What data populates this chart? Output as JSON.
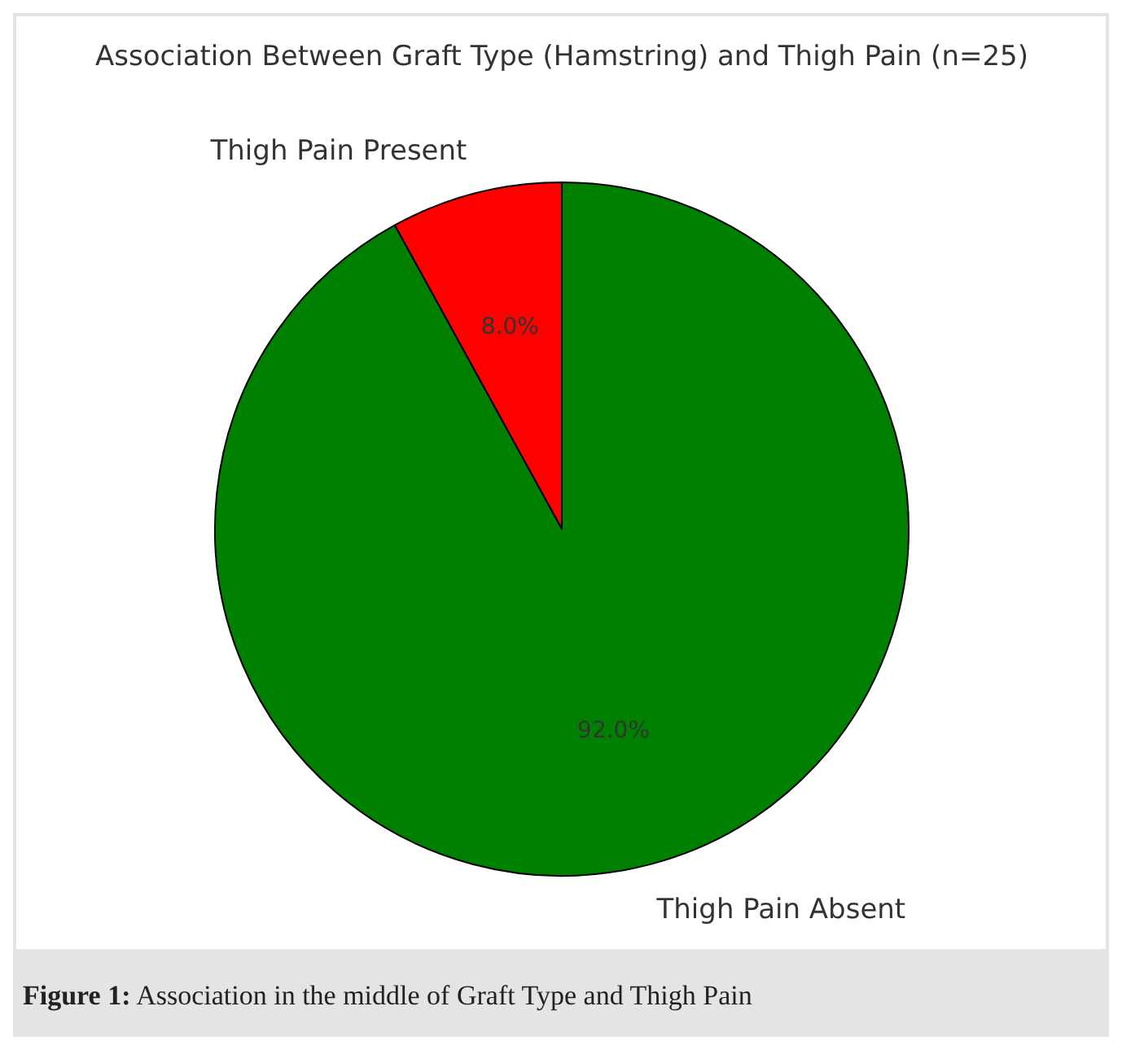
{
  "chart_data": {
    "type": "pie",
    "title": "Association Between Graft Type (Hamstring) and Thigh Pain (n=25)",
    "categories": [
      "Thigh Pain Present",
      "Thigh Pain Absent"
    ],
    "values": [
      8,
      92
    ],
    "colors": [
      "#ff0000",
      "#008000"
    ],
    "value_labels": [
      "8.0%",
      "92.0%"
    ],
    "annotations": [
      "Figure 1: Association in the middle of Graft Type and Thigh Pain"
    ]
  }
}
